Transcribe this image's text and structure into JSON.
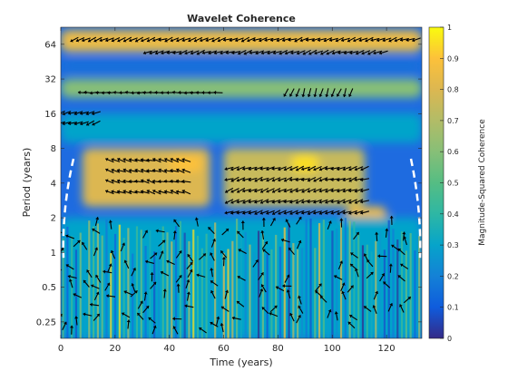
{
  "chart_data": {
    "type": "heatmap",
    "title": "Wavelet Coherence",
    "xlabel": "Time (years)",
    "ylabel": "Period (years)",
    "colorbar_label": "Magnitude-Squared Coherence",
    "xlim": [
      0,
      133
    ],
    "ylim": [
      0.18,
      90
    ],
    "y_scale": "log2",
    "x_ticks": [
      0,
      20,
      40,
      60,
      80,
      100,
      120
    ],
    "x_tick_labels": [
      "0",
      "20",
      "40",
      "60",
      "80",
      "100",
      "120"
    ],
    "y_ticks": [
      0.25,
      0.5,
      1,
      2,
      4,
      8,
      16,
      32,
      64
    ],
    "y_tick_labels": [
      "0.25",
      "0.5",
      "1",
      "2",
      "4",
      "8",
      "16",
      "32",
      "64"
    ],
    "colorbar_ticks": [
      0,
      0.1,
      0.2,
      0.3,
      0.4,
      0.5,
      0.6,
      0.7,
      0.8,
      0.9,
      1
    ],
    "colorbar_tick_labels": [
      "0",
      "0.1",
      "0.2",
      "0.3",
      "0.4",
      "0.5",
      "0.6",
      "0.7",
      "0.8",
      "0.9",
      "1"
    ],
    "clim": [
      0,
      1
    ],
    "colormap": "parula",
    "cone_of_influence": "white dashed",
    "phase_arrows": true,
    "coherence_regions": [
      {
        "t0": 0,
        "t1": 133,
        "p0": 55,
        "p1": 85,
        "value": 0.85
      },
      {
        "t0": 0,
        "t1": 133,
        "p0": 36,
        "p1": 48,
        "value": 0.15
      },
      {
        "t0": 0,
        "t1": 133,
        "p0": 22,
        "p1": 32,
        "value": 0.6
      },
      {
        "t0": 0,
        "t1": 133,
        "p0": 9,
        "p1": 16,
        "value": 0.3
      },
      {
        "t0": 8,
        "t1": 55,
        "p0": 2.5,
        "p1": 8,
        "value": 0.8
      },
      {
        "t0": 60,
        "t1": 112,
        "p0": 2.5,
        "p1": 8,
        "value": 0.75
      },
      {
        "t0": 85,
        "t1": 95,
        "p0": 5,
        "p1": 7,
        "value": 0.95
      },
      {
        "t0": 40,
        "t1": 52,
        "p0": 5,
        "p1": 7,
        "value": 0.9
      },
      {
        "t0": 105,
        "t1": 120,
        "p0": 1.6,
        "p1": 2.5,
        "value": 0.85
      },
      {
        "t0": 0,
        "t1": 133,
        "p0": 0.18,
        "p1": 2,
        "value": 0.3
      }
    ],
    "phase_arrow_regions": [
      {
        "t0": 5,
        "t1": 132,
        "p0": 62,
        "p1": 80,
        "angle": 200
      },
      {
        "t0": 32,
        "t1": 120,
        "p0": 48,
        "p1": 62,
        "angle": 200
      },
      {
        "t0": 8,
        "t1": 58,
        "p0": 22,
        "p1": 27,
        "angle": 180
      },
      {
        "t0": 83,
        "t1": 108,
        "p0": 22,
        "p1": 27,
        "angle": 250
      },
      {
        "t0": 0,
        "t1": 15,
        "p0": 12,
        "p1": 18,
        "angle": 200
      },
      {
        "t0": 18,
        "t1": 48,
        "p0": 3,
        "p1": 7,
        "angle": 165
      },
      {
        "t0": 62,
        "t1": 112,
        "p0": 2,
        "p1": 6,
        "angle": 200
      },
      {
        "t0": 0,
        "t1": 130,
        "p0": 0.2,
        "p1": 2,
        "angle": 110
      }
    ]
  }
}
